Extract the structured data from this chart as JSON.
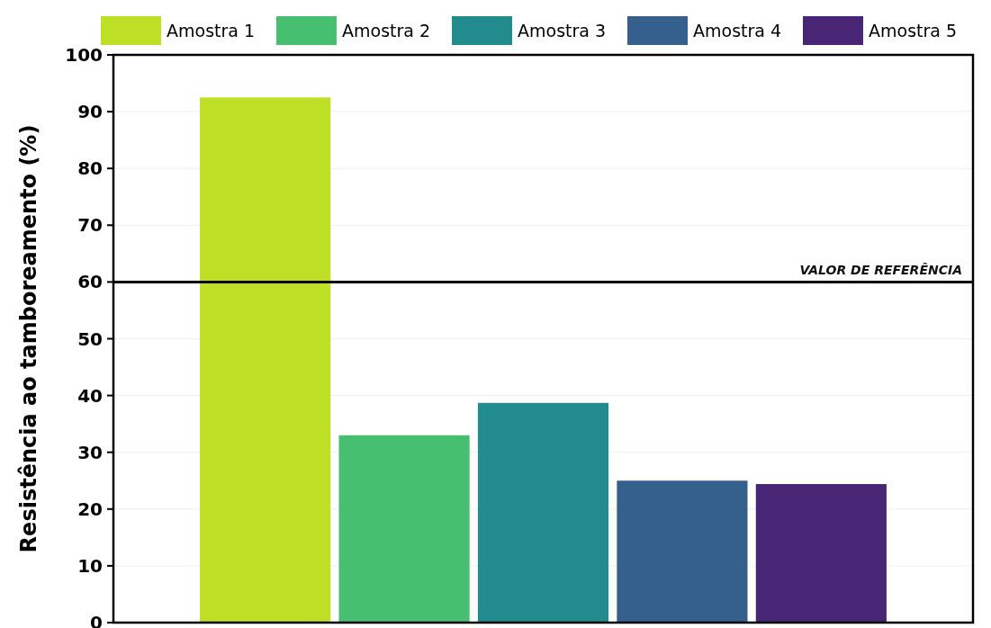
{
  "chart_data": {
    "type": "bar",
    "ylabel": "Resistência ao tamboreamento (%)",
    "categories": [
      null
    ],
    "series": [
      {
        "name": "Amostra 1",
        "color": "#bddf26",
        "values": [
          92.5
        ]
      },
      {
        "name": "Amostra 2",
        "color": "#47bf70",
        "values": [
          33.0
        ]
      },
      {
        "name": "Amostra 3",
        "color": "#228b8d",
        "values": [
          38.7
        ]
      },
      {
        "name": "Amostra 4",
        "color": "#355f8d",
        "values": [
          25.0
        ]
      },
      {
        "name": "Amostra 5",
        "color": "#482575",
        "values": [
          24.4
        ]
      }
    ],
    "ylim": [
      0,
      100
    ],
    "yticks": [
      0,
      10,
      20,
      30,
      40,
      50,
      60,
      70,
      80,
      90,
      100
    ],
    "grid": "y",
    "legend": "top",
    "tick_labels": "y",
    "ref_lines": [
      {
        "axis": "y",
        "value": 60,
        "label": "VALOR DE REFERÊNCIA",
        "color": "#000000"
      }
    ]
  }
}
